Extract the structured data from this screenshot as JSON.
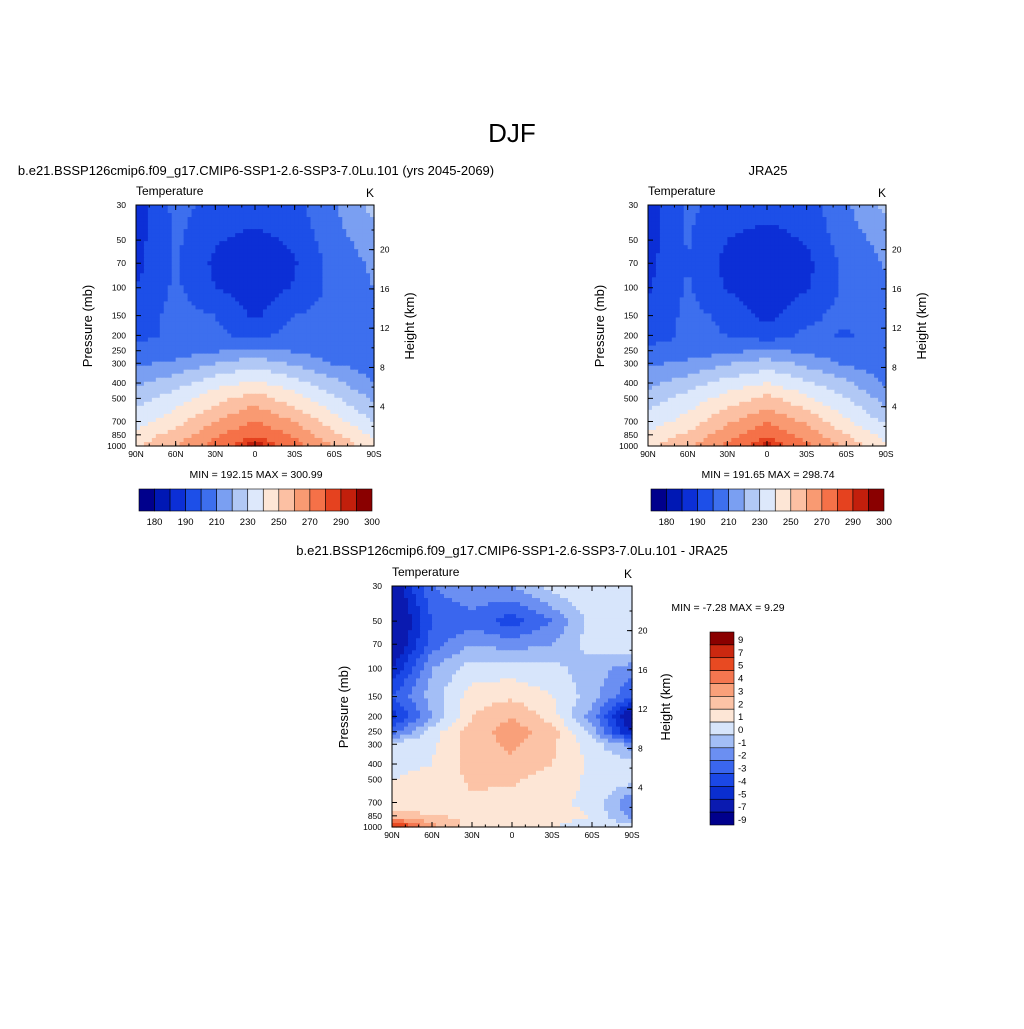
{
  "figure": {
    "title": "DJF"
  },
  "colormaps": {
    "abs": [
      "#00008c",
      "#0018b4",
      "#0c2fd6",
      "#1d4fe8",
      "#3d6fee",
      "#7a9ff2",
      "#b1c8f5",
      "#dde8fb",
      "#fde6d6",
      "#fcc0a3",
      "#f99a72",
      "#f57148",
      "#e5421f",
      "#c21f0c",
      "#8a0000"
    ],
    "diff": [
      "#00008c",
      "#0a1ab0",
      "#0a2ed0",
      "#1b48e6",
      "#3a66ee",
      "#6b8ff2",
      "#a3bef6",
      "#d7e5fb",
      "#fde6d6",
      "#fcc3a6",
      "#f9a07a",
      "#f47650",
      "#e84a22",
      "#cb2810",
      "#8a0000"
    ]
  },
  "chart_data": [
    {
      "type": "heatmap",
      "panel_title": "b.e21.BSSP126cmip6.f09_g17.CMIP6-SSP1-2.6-SSP3-7.0Lu.101 (yrs 2045-2069)",
      "variable": "Temperature",
      "units": "K",
      "xlabel": "",
      "ylabel": "Pressure (mb)",
      "y2label": "Height (km)",
      "xticks": [
        "90N",
        "60N",
        "30N",
        "0",
        "30S",
        "60S",
        "90S"
      ],
      "yticks": [
        30,
        50,
        70,
        100,
        150,
        200,
        250,
        300,
        400,
        500,
        700,
        850,
        1000
      ],
      "y2ticks": [
        4,
        8,
        12,
        16,
        20
      ],
      "y_scale": "log",
      "y_range": [
        1000,
        30
      ],
      "stats": "MIN = 192.15  MAX = 300.99",
      "colorbar_labels": [
        "180",
        "190",
        "210",
        "230",
        "250",
        "270",
        "290",
        "300"
      ],
      "levels": [
        180,
        185,
        190,
        200,
        210,
        220,
        230,
        240,
        250,
        260,
        270,
        280,
        290,
        295,
        300
      ],
      "grid_lat": [
        "90N",
        "60N",
        "30N",
        "0",
        "30S",
        "60S",
        "90S"
      ],
      "grid_p": [
        1000,
        850,
        700,
        500,
        400,
        300,
        250,
        200,
        150,
        100,
        70,
        50,
        30
      ],
      "values": [
        [
          258,
          270,
          284,
          300,
          284,
          270,
          252
        ],
        [
          254,
          264,
          278,
          289,
          278,
          262,
          248
        ],
        [
          245,
          256,
          270,
          281,
          270,
          254,
          240
        ],
        [
          236,
          245,
          256,
          265,
          254,
          242,
          228
        ],
        [
          228,
          236,
          246,
          252,
          244,
          233,
          220
        ],
        [
          218,
          222,
          230,
          236,
          228,
          219,
          215
        ],
        [
          215,
          215,
          219,
          222,
          219,
          214,
          213
        ],
        [
          206,
          213,
          212,
          207,
          214,
          210,
          214
        ],
        [
          203,
          214,
          210,
          198,
          210,
          214,
          216
        ],
        [
          200,
          212,
          200,
          194,
          201,
          213,
          220
        ],
        [
          197,
          211,
          198,
          192,
          199,
          214,
          222
        ],
        [
          196,
          212,
          201,
          197,
          202,
          217,
          224
        ],
        [
          194,
          213,
          207,
          205,
          207,
          219,
          234
        ]
      ]
    },
    {
      "type": "heatmap",
      "panel_title": "JRA25",
      "variable": "Temperature",
      "units": "K",
      "xlabel": "",
      "ylabel": "Pressure (mb)",
      "y2label": "Height (km)",
      "xticks": [
        "90N",
        "60N",
        "30N",
        "0",
        "30S",
        "60S",
        "90S"
      ],
      "yticks": [
        30,
        50,
        70,
        100,
        150,
        200,
        250,
        300,
        400,
        500,
        700,
        850,
        1000
      ],
      "y2ticks": [
        4,
        8,
        12,
        16,
        20
      ],
      "y_scale": "log",
      "y_range": [
        1000,
        30
      ],
      "stats": "MIN = 191.65  MAX = 298.74",
      "colorbar_labels": [
        "180",
        "190",
        "210",
        "230",
        "250",
        "270",
        "290",
        "300"
      ],
      "levels": [
        180,
        185,
        190,
        200,
        210,
        220,
        230,
        240,
        250,
        260,
        270,
        280,
        290,
        295,
        300
      ],
      "grid_lat": [
        "90N",
        "60N",
        "30N",
        "0",
        "30S",
        "60S",
        "90S"
      ],
      "grid_p": [
        1000,
        850,
        700,
        500,
        400,
        300,
        250,
        200,
        150,
        100,
        70,
        50,
        30
      ],
      "values": [
        [
          257,
          268,
          283,
          298,
          283,
          268,
          251
        ],
        [
          253,
          262,
          276,
          288,
          276,
          260,
          246
        ],
        [
          244,
          254,
          268,
          279,
          268,
          252,
          238
        ],
        [
          235,
          244,
          254,
          263,
          252,
          240,
          226
        ],
        [
          227,
          235,
          244,
          250,
          242,
          232,
          219
        ],
        [
          218,
          222,
          229,
          235,
          227,
          218,
          214
        ],
        [
          214,
          214,
          218,
          221,
          218,
          213,
          212
        ],
        [
          204,
          212,
          210,
          205,
          212,
          209,
          213
        ],
        [
          201,
          213,
          208,
          196,
          208,
          213,
          215
        ],
        [
          199,
          211,
          199,
          192,
          199,
          212,
          219
        ],
        [
          197,
          210,
          197,
          191,
          197,
          213,
          221
        ],
        [
          196,
          211,
          200,
          196,
          201,
          216,
          223
        ],
        [
          195,
          212,
          206,
          204,
          206,
          218,
          233
        ]
      ]
    },
    {
      "type": "heatmap",
      "panel_title": "b.e21.BSSP126cmip6.f09_g17.CMIP6-SSP1-2.6-SSP3-7.0Lu.101 - JRA25",
      "variable": "Temperature",
      "units": "K",
      "xlabel": "",
      "ylabel": "Pressure (mb)",
      "y2label": "Height (km)",
      "xticks": [
        "90N",
        "60N",
        "30N",
        "0",
        "30S",
        "60S",
        "90S"
      ],
      "yticks": [
        30,
        50,
        70,
        100,
        150,
        200,
        250,
        300,
        400,
        500,
        700,
        850,
        1000
      ],
      "y2ticks": [
        4,
        8,
        12,
        16,
        20
      ],
      "y_scale": "log",
      "y_range": [
        1000,
        30
      ],
      "stats": "MIN =  -7.28  MAX =   9.29",
      "colorbar_labels": [
        "9",
        "7",
        "5",
        "4",
        "3",
        "2",
        "1",
        "0",
        "-1",
        "-2",
        "-3",
        "-4",
        "-5",
        "-7",
        "-9"
      ],
      "levels": [
        -9,
        -7,
        -5,
        -4,
        -3,
        -2,
        -1,
        0,
        1,
        2,
        3,
        4,
        5,
        7,
        9
      ],
      "grid_lat": [
        "90N",
        "60N",
        "30N",
        "0",
        "30S",
        "60S",
        "90S"
      ],
      "grid_p": [
        1000,
        850,
        700,
        500,
        400,
        300,
        250,
        200,
        150,
        100,
        70,
        50,
        30
      ],
      "values": [
        [
          7.0,
          3.5,
          1.5,
          1.0,
          1.0,
          0.8,
          0.5
        ],
        [
          2.5,
          2.0,
          1.8,
          1.5,
          1.2,
          1.0,
          -1.5
        ],
        [
          1.5,
          1.5,
          1.8,
          1.6,
          1.2,
          0.8,
          -2.0
        ],
        [
          1.0,
          1.2,
          2.2,
          2.2,
          1.5,
          0.8,
          0.5
        ],
        [
          0.8,
          1.0,
          2.5,
          2.8,
          2.0,
          0.8,
          0.3
        ],
        [
          0.5,
          0.8,
          2.5,
          3.2,
          2.2,
          0.5,
          -1.5
        ],
        [
          -2.5,
          0.5,
          2.5,
          3.5,
          2.5,
          -0.5,
          -5.5
        ],
        [
          -4.5,
          -1.0,
          2.0,
          3.0,
          1.5,
          -1.5,
          -6.5
        ],
        [
          -3.0,
          -0.5,
          1.5,
          1.8,
          1.0,
          -0.5,
          -3.0
        ],
        [
          -5.0,
          -1.0,
          0.5,
          0.5,
          0.3,
          -0.5,
          -1.5
        ],
        [
          -6.5,
          -2.5,
          -1.0,
          -1.5,
          -1.0,
          0.5,
          0.8
        ],
        [
          -7.0,
          -3.0,
          -2.5,
          -3.5,
          -2.0,
          0.5,
          0.8
        ],
        [
          -6.0,
          -2.0,
          -1.0,
          -1.0,
          0.5,
          0.8,
          0.8
        ]
      ]
    }
  ]
}
